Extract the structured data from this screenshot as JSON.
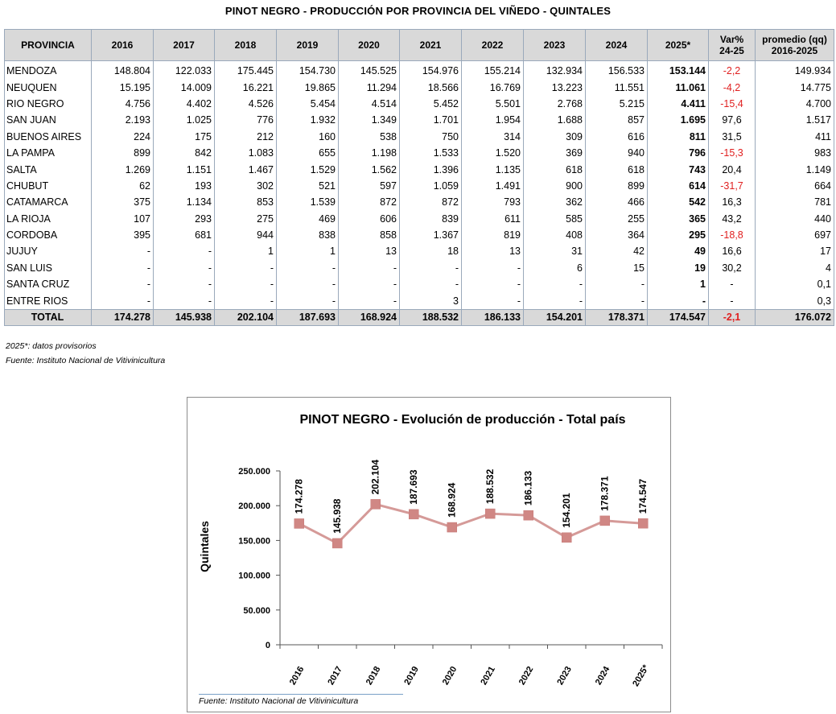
{
  "title": "PINOT NEGRO - PRODUCCIÓN POR PROVINCIA DEL VIÑEDO - QUINTALES",
  "table": {
    "headers": [
      "PROVINCIA",
      "2016",
      "2017",
      "2018",
      "2019",
      "2020",
      "2021",
      "2022",
      "2023",
      "2024",
      "2025*",
      "Var%",
      "24-25",
      "promedio (qq)",
      "2016-2025"
    ],
    "rows": [
      {
        "prov": "MENDOZA",
        "vals": [
          "148.804",
          "122.033",
          "175.445",
          "154.730",
          "145.525",
          "154.976",
          "155.214",
          "132.934",
          "156.533",
          "153.144"
        ],
        "var": "-2,2",
        "neg": true,
        "prom": "149.934"
      },
      {
        "prov": "NEUQUEN",
        "vals": [
          "15.195",
          "14.009",
          "16.221",
          "19.865",
          "11.294",
          "18.566",
          "16.769",
          "13.223",
          "11.551",
          "11.061"
        ],
        "var": "-4,2",
        "neg": true,
        "prom": "14.775"
      },
      {
        "prov": "RIO NEGRO",
        "vals": [
          "4.756",
          "4.402",
          "4.526",
          "5.454",
          "4.514",
          "5.452",
          "5.501",
          "2.768",
          "5.215",
          "4.411"
        ],
        "var": "-15,4",
        "neg": true,
        "prom": "4.700"
      },
      {
        "prov": "SAN JUAN",
        "vals": [
          "2.193",
          "1.025",
          "776",
          "1.932",
          "1.349",
          "1.701",
          "1.954",
          "1.688",
          "857",
          "1.695"
        ],
        "var": "97,6",
        "neg": false,
        "prom": "1.517"
      },
      {
        "prov": "BUENOS AIRES",
        "vals": [
          "224",
          "175",
          "212",
          "160",
          "538",
          "750",
          "314",
          "309",
          "616",
          "811"
        ],
        "var": "31,5",
        "neg": false,
        "prom": "411"
      },
      {
        "prov": "LA PAMPA",
        "vals": [
          "899",
          "842",
          "1.083",
          "655",
          "1.198",
          "1.533",
          "1.520",
          "369",
          "940",
          "796"
        ],
        "var": "-15,3",
        "neg": true,
        "prom": "983"
      },
      {
        "prov": "SALTA",
        "vals": [
          "1.269",
          "1.151",
          "1.467",
          "1.529",
          "1.562",
          "1.396",
          "1.135",
          "618",
          "618",
          "743"
        ],
        "var": "20,4",
        "neg": false,
        "prom": "1.149"
      },
      {
        "prov": "CHUBUT",
        "vals": [
          "62",
          "193",
          "302",
          "521",
          "597",
          "1.059",
          "1.491",
          "900",
          "899",
          "614"
        ],
        "var": "-31,7",
        "neg": true,
        "prom": "664"
      },
      {
        "prov": "CATAMARCA",
        "vals": [
          "375",
          "1.134",
          "853",
          "1.539",
          "872",
          "872",
          "793",
          "362",
          "466",
          "542"
        ],
        "var": "16,3",
        "neg": false,
        "prom": "781"
      },
      {
        "prov": "LA RIOJA",
        "vals": [
          "107",
          "293",
          "275",
          "469",
          "606",
          "839",
          "611",
          "585",
          "255",
          "365"
        ],
        "var": "43,2",
        "neg": false,
        "prom": "440"
      },
      {
        "prov": "CORDOBA",
        "vals": [
          "395",
          "681",
          "944",
          "838",
          "858",
          "1.367",
          "819",
          "408",
          "364",
          "295"
        ],
        "var": "-18,8",
        "neg": true,
        "prom": "697"
      },
      {
        "prov": "JUJUY",
        "vals": [
          "-",
          "-",
          "1",
          "1",
          "13",
          "18",
          "13",
          "31",
          "42",
          "49"
        ],
        "var": "16,6",
        "neg": false,
        "prom": "17"
      },
      {
        "prov": "SAN LUIS",
        "vals": [
          "-",
          "-",
          "-",
          "-",
          "-",
          "-",
          "-",
          "6",
          "15",
          "19"
        ],
        "var": "30,2",
        "neg": false,
        "prom": "4"
      },
      {
        "prov": "SANTA CRUZ",
        "vals": [
          "-",
          "-",
          "-",
          "-",
          "-",
          "-",
          "-",
          "-",
          "-",
          "1"
        ],
        "var": "-",
        "neg": false,
        "prom": "0,1"
      },
      {
        "prov": "ENTRE RIOS",
        "vals": [
          "-",
          "-",
          "-",
          "-",
          "-",
          "3",
          "-",
          "-",
          "-",
          "-"
        ],
        "var": "-",
        "neg": false,
        "prom": "0,3"
      }
    ],
    "total": {
      "prov": "TOTAL",
      "vals": [
        "174.278",
        "145.938",
        "202.104",
        "187.693",
        "168.924",
        "188.532",
        "186.133",
        "154.201",
        "178.371",
        "174.547"
      ],
      "var": "-2,1",
      "neg": true,
      "prom": "176.072"
    }
  },
  "notes": {
    "provisional": "2025*: datos provisorios",
    "source": "Fuente: Instituto Nacional de Vitivinicultura"
  },
  "colors": {
    "line": "#d59a98",
    "marker": "#d08784",
    "negative": "#e02020",
    "header_bg": "#d9d9d9"
  },
  "chart_data": {
    "type": "line",
    "title": "PINOT NEGRO - Evolución de producción - Total país",
    "xlabel": "",
    "ylabel": "Quintales",
    "categories": [
      "2016",
      "2017",
      "2018",
      "2019",
      "2020",
      "2021",
      "2022",
      "2023",
      "2024",
      "2025*"
    ],
    "series": [
      {
        "name": "Total país",
        "values": [
          174278,
          145938,
          202104,
          187693,
          168924,
          188532,
          186133,
          154201,
          178371,
          174547
        ]
      }
    ],
    "data_labels": [
      "174.278",
      "145.938",
      "202.104",
      "187.693",
      "168.924",
      "188.532",
      "186.133",
      "154.201",
      "178.371",
      "174.547"
    ],
    "ylim": [
      0,
      250000
    ],
    "yticks": [
      0,
      50000,
      100000,
      150000,
      200000,
      250000
    ],
    "ytick_labels": [
      "0",
      "50.000",
      "100.000",
      "150.000",
      "200.000",
      "250.000"
    ],
    "grid": false,
    "source": "Fuente: Instituto Nacional de Vitivinicultura"
  }
}
